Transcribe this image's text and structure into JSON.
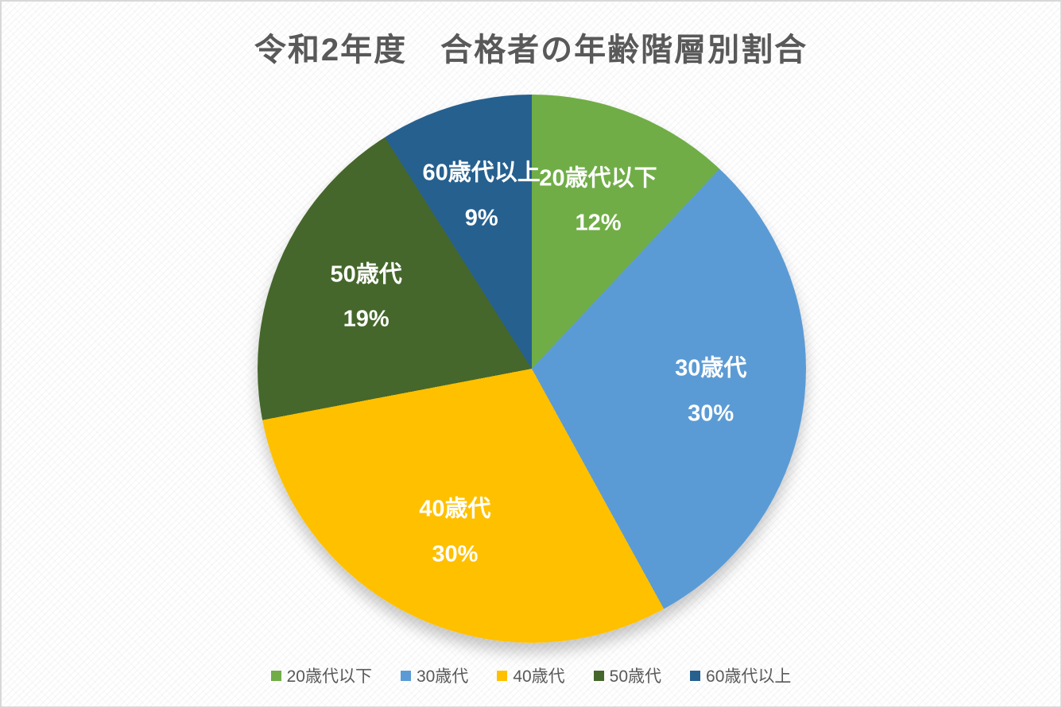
{
  "chart_data": {
    "type": "pie",
    "title": "令和2年度　合格者の年齢階層別割合",
    "categories": [
      "20歳代以下",
      "30歳代",
      "40歳代",
      "50歳代",
      "60歳代以上"
    ],
    "values": [
      12,
      30,
      30,
      19,
      9
    ],
    "unit": "%",
    "colors": [
      "#70AD47",
      "#5B9BD5",
      "#FFC000",
      "#45672B",
      "#26608F"
    ],
    "slice_labels": [
      "20歳代以下 12%",
      "30歳代 30%",
      "40歳代 30%",
      "50歳代 19%",
      "60歳代以上 9%"
    ],
    "start_angle_deg": 0,
    "direction": "clockwise",
    "slice_label_color": "#FFFFFF",
    "title_color": "#595959",
    "legend_text_color": "#595959",
    "legend_position": "bottom",
    "grid": false
  }
}
